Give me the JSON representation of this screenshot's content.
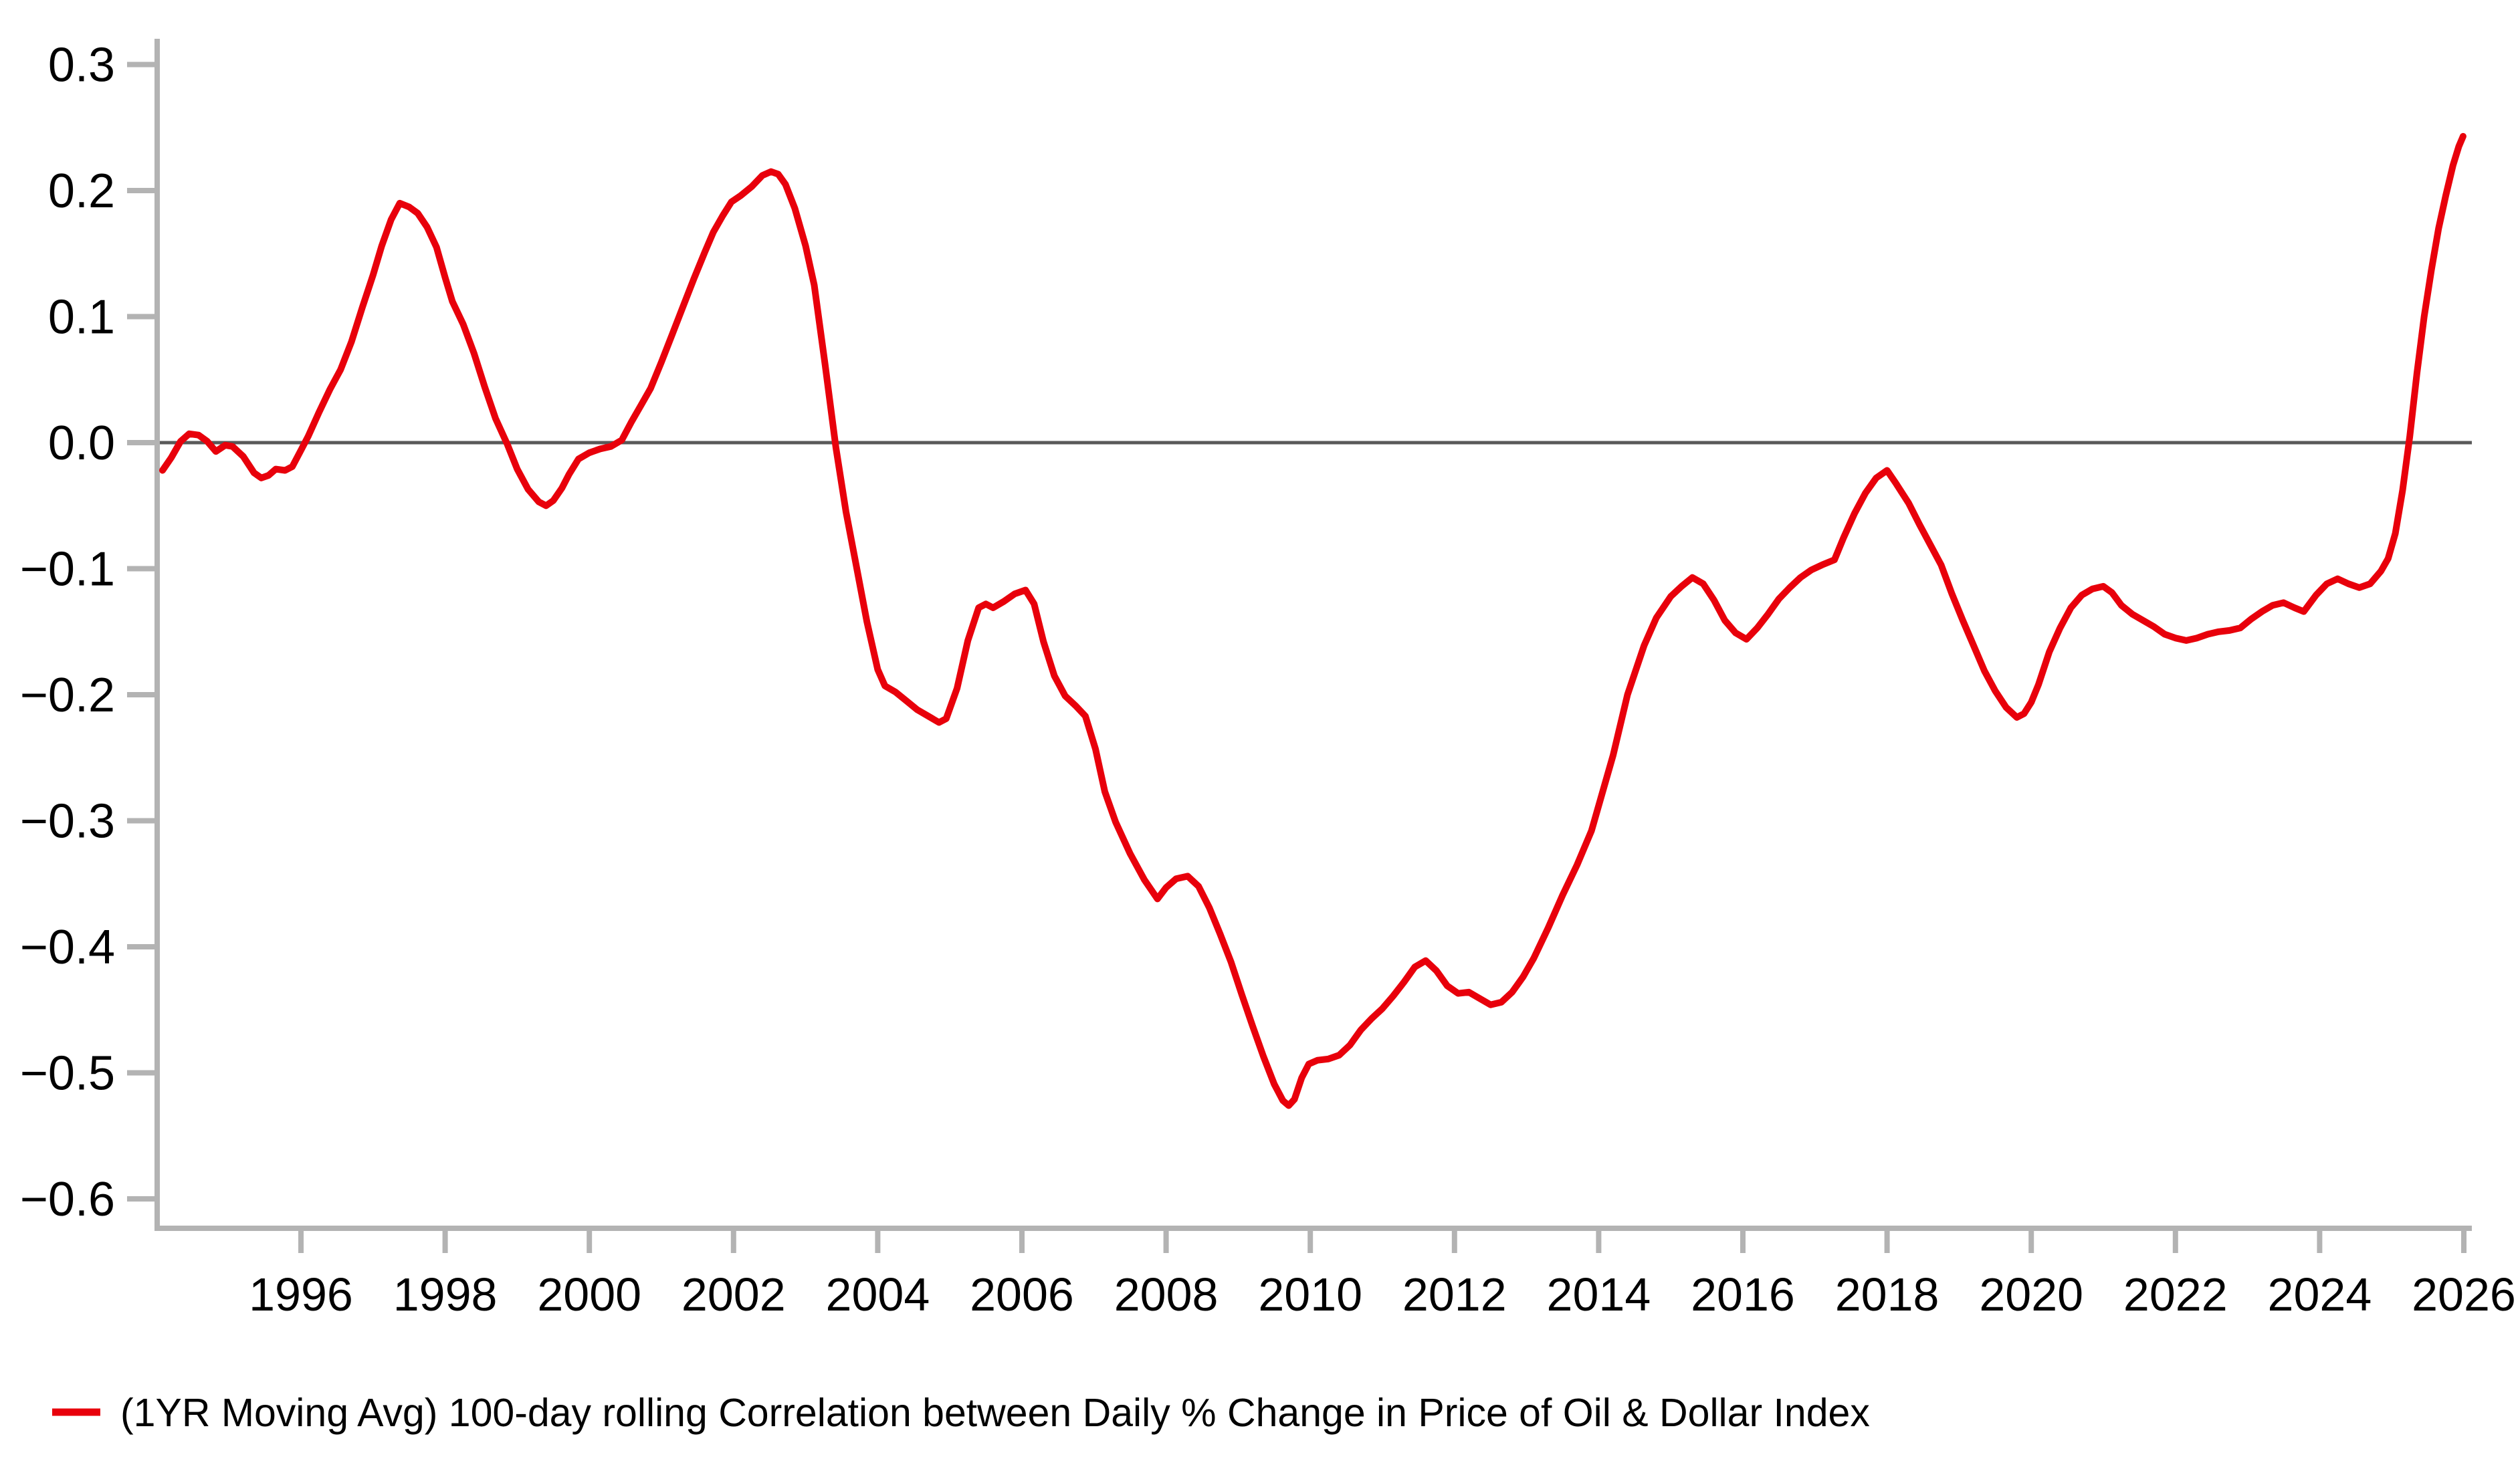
{
  "chart_data": {
    "type": "line",
    "title": "",
    "xlabel": "",
    "ylabel": "",
    "grid": false,
    "zero_line": true,
    "legend_position": "bottom-left",
    "colors": {
      "series": "#e8000b",
      "axis": "#b3b3b3",
      "zero_line": "#595959",
      "tick_text": "#000000"
    },
    "x_axis": {
      "min_year": 1994.0,
      "max_year": 2026.1,
      "ticks": [
        {
          "label": "1996",
          "year": 1996
        },
        {
          "label": "1998",
          "year": 1998
        },
        {
          "label": "2000",
          "year": 2000
        },
        {
          "label": "2002",
          "year": 2002
        },
        {
          "label": "2004",
          "year": 2004
        },
        {
          "label": "2006",
          "year": 2006
        },
        {
          "label": "2008",
          "year": 2008
        },
        {
          "label": "2010",
          "year": 2010
        },
        {
          "label": "2012",
          "year": 2012
        },
        {
          "label": "2014",
          "year": 2014
        },
        {
          "label": "2016",
          "year": 2016
        },
        {
          "label": "2018",
          "year": 2018
        },
        {
          "label": "2020",
          "year": 2020
        },
        {
          "label": "2022",
          "year": 2022
        },
        {
          "label": "2024",
          "year": 2024
        },
        {
          "label": "2026",
          "year": 2026
        }
      ]
    },
    "y_axis": {
      "min": -0.623,
      "max": 0.321,
      "ticks": [
        {
          "label": "0.3",
          "value": 0.3
        },
        {
          "label": "0.2",
          "value": 0.2
        },
        {
          "label": "0.1",
          "value": 0.1
        },
        {
          "label": "0.0",
          "value": 0.0
        },
        {
          "label": "−0.1",
          "value": -0.1
        },
        {
          "label": "−0.2",
          "value": -0.2
        },
        {
          "label": "−0.3",
          "value": -0.3
        },
        {
          "label": "−0.4",
          "value": -0.4
        },
        {
          "label": "−0.5",
          "value": -0.5
        },
        {
          "label": "−0.6",
          "value": -0.6
        }
      ]
    },
    "legend": {
      "swatch": "red-line",
      "label": "(1YR Moving Avg) 100-day rolling Correlation between Daily % Change in Price of Oil & Dollar Index"
    },
    "series": [
      {
        "name": "(1YR Moving Avg) 100-day rolling Correlation between Daily % Change in Price of Oil & Dollar Index",
        "color": "#e8000b",
        "points": [
          [
            1994.08,
            -0.022
          ],
          [
            1994.2,
            -0.012
          ],
          [
            1994.33,
            0.001
          ],
          [
            1994.45,
            0.007
          ],
          [
            1994.58,
            0.006
          ],
          [
            1994.7,
            0.001
          ],
          [
            1994.82,
            -0.007
          ],
          [
            1994.95,
            -0.002
          ],
          [
            1995.05,
            -0.003
          ],
          [
            1995.2,
            -0.011
          ],
          [
            1995.35,
            -0.024
          ],
          [
            1995.45,
            -0.028
          ],
          [
            1995.55,
            -0.026
          ],
          [
            1995.65,
            -0.021
          ],
          [
            1995.78,
            -0.022
          ],
          [
            1995.88,
            -0.019
          ],
          [
            1996.0,
            -0.006
          ],
          [
            1996.1,
            0.005
          ],
          [
            1996.25,
            0.024
          ],
          [
            1996.4,
            0.042
          ],
          [
            1996.55,
            0.058
          ],
          [
            1996.7,
            0.08
          ],
          [
            1996.85,
            0.107
          ],
          [
            1997.0,
            0.133
          ],
          [
            1997.12,
            0.156
          ],
          [
            1997.25,
            0.177
          ],
          [
            1997.37,
            0.19
          ],
          [
            1997.5,
            0.187
          ],
          [
            1997.62,
            0.182
          ],
          [
            1997.75,
            0.171
          ],
          [
            1997.88,
            0.155
          ],
          [
            1998.0,
            0.131
          ],
          [
            1998.1,
            0.112
          ],
          [
            1998.25,
            0.094
          ],
          [
            1998.4,
            0.071
          ],
          [
            1998.55,
            0.044
          ],
          [
            1998.7,
            0.019
          ],
          [
            1998.86,
            -0.001
          ],
          [
            1999.0,
            -0.021
          ],
          [
            1999.15,
            -0.037
          ],
          [
            1999.3,
            -0.047
          ],
          [
            1999.4,
            -0.05
          ],
          [
            1999.5,
            -0.046
          ],
          [
            1999.62,
            -0.036
          ],
          [
            1999.72,
            -0.025
          ],
          [
            1999.85,
            -0.013
          ],
          [
            2000.0,
            -0.008
          ],
          [
            2000.15,
            -0.005
          ],
          [
            2000.3,
            -0.003
          ],
          [
            2000.45,
            0.002
          ],
          [
            2000.58,
            0.016
          ],
          [
            2000.72,
            0.03
          ],
          [
            2000.85,
            0.043
          ],
          [
            2001.0,
            0.064
          ],
          [
            2001.15,
            0.086
          ],
          [
            2001.3,
            0.108
          ],
          [
            2001.45,
            0.13
          ],
          [
            2001.6,
            0.151
          ],
          [
            2001.72,
            0.167
          ],
          [
            2001.85,
            0.18
          ],
          [
            2001.97,
            0.191
          ],
          [
            2002.1,
            0.196
          ],
          [
            2002.25,
            0.203
          ],
          [
            2002.4,
            0.212
          ],
          [
            2002.52,
            0.215
          ],
          [
            2002.62,
            0.213
          ],
          [
            2002.72,
            0.205
          ],
          [
            2002.85,
            0.186
          ],
          [
            2003.0,
            0.156
          ],
          [
            2003.12,
            0.125
          ],
          [
            2003.27,
            0.062
          ],
          [
            2003.42,
            -0.004
          ],
          [
            2003.56,
            -0.055
          ],
          [
            2003.7,
            -0.097
          ],
          [
            2003.85,
            -0.142
          ],
          [
            2004.0,
            -0.18
          ],
          [
            2004.1,
            -0.193
          ],
          [
            2004.25,
            -0.198
          ],
          [
            2004.4,
            -0.205
          ],
          [
            2004.55,
            -0.212
          ],
          [
            2004.7,
            -0.217
          ],
          [
            2004.85,
            -0.222
          ],
          [
            2004.95,
            -0.219
          ],
          [
            2005.1,
            -0.195
          ],
          [
            2005.25,
            -0.157
          ],
          [
            2005.4,
            -0.131
          ],
          [
            2005.5,
            -0.128
          ],
          [
            2005.6,
            -0.131
          ],
          [
            2005.75,
            -0.126
          ],
          [
            2005.9,
            -0.12
          ],
          [
            2006.05,
            -0.117
          ],
          [
            2006.17,
            -0.128
          ],
          [
            2006.3,
            -0.158
          ],
          [
            2006.45,
            -0.185
          ],
          [
            2006.6,
            -0.201
          ],
          [
            2006.75,
            -0.209
          ],
          [
            2006.88,
            -0.217
          ],
          [
            2007.02,
            -0.243
          ],
          [
            2007.15,
            -0.277
          ],
          [
            2007.3,
            -0.301
          ],
          [
            2007.5,
            -0.326
          ],
          [
            2007.7,
            -0.347
          ],
          [
            2007.88,
            -0.362
          ],
          [
            2008.0,
            -0.353
          ],
          [
            2008.14,
            -0.346
          ],
          [
            2008.3,
            -0.344
          ],
          [
            2008.45,
            -0.352
          ],
          [
            2008.6,
            -0.369
          ],
          [
            2008.75,
            -0.39
          ],
          [
            2008.9,
            -0.412
          ],
          [
            2009.05,
            -0.438
          ],
          [
            2009.2,
            -0.463
          ],
          [
            2009.35,
            -0.487
          ],
          [
            2009.5,
            -0.509
          ],
          [
            2009.62,
            -0.522
          ],
          [
            2009.7,
            -0.526
          ],
          [
            2009.78,
            -0.521
          ],
          [
            2009.88,
            -0.504
          ],
          [
            2009.98,
            -0.493
          ],
          [
            2010.1,
            -0.49
          ],
          [
            2010.25,
            -0.489
          ],
          [
            2010.4,
            -0.486
          ],
          [
            2010.55,
            -0.478
          ],
          [
            2010.7,
            -0.466
          ],
          [
            2010.85,
            -0.457
          ],
          [
            2011.0,
            -0.449
          ],
          [
            2011.15,
            -0.439
          ],
          [
            2011.3,
            -0.428
          ],
          [
            2011.45,
            -0.416
          ],
          [
            2011.6,
            -0.411
          ],
          [
            2011.75,
            -0.419
          ],
          [
            2011.9,
            -0.431
          ],
          [
            2012.05,
            -0.437
          ],
          [
            2012.2,
            -0.436
          ],
          [
            2012.35,
            -0.441
          ],
          [
            2012.5,
            -0.446
          ],
          [
            2012.65,
            -0.444
          ],
          [
            2012.8,
            -0.436
          ],
          [
            2012.95,
            -0.424
          ],
          [
            2013.1,
            -0.409
          ],
          [
            2013.3,
            -0.385
          ],
          [
            2013.5,
            -0.359
          ],
          [
            2013.7,
            -0.335
          ],
          [
            2013.9,
            -0.308
          ],
          [
            2014.05,
            -0.278
          ],
          [
            2014.2,
            -0.248
          ],
          [
            2014.4,
            -0.2
          ],
          [
            2014.63,
            -0.161
          ],
          [
            2014.8,
            -0.139
          ],
          [
            2015.0,
            -0.122
          ],
          [
            2015.15,
            -0.114
          ],
          [
            2015.3,
            -0.107
          ],
          [
            2015.45,
            -0.112
          ],
          [
            2015.6,
            -0.125
          ],
          [
            2015.75,
            -0.141
          ],
          [
            2015.9,
            -0.151
          ],
          [
            2016.05,
            -0.156
          ],
          [
            2016.2,
            -0.147
          ],
          [
            2016.35,
            -0.136
          ],
          [
            2016.5,
            -0.124
          ],
          [
            2016.65,
            -0.115
          ],
          [
            2016.8,
            -0.107
          ],
          [
            2016.95,
            -0.101
          ],
          [
            2017.1,
            -0.097
          ],
          [
            2017.27,
            -0.093
          ],
          [
            2017.4,
            -0.075
          ],
          [
            2017.55,
            -0.056
          ],
          [
            2017.7,
            -0.04
          ],
          [
            2017.85,
            -0.028
          ],
          [
            2018.0,
            -0.022
          ],
          [
            2018.12,
            -0.032
          ],
          [
            2018.3,
            -0.048
          ],
          [
            2018.45,
            -0.065
          ],
          [
            2018.6,
            -0.081
          ],
          [
            2018.75,
            -0.097
          ],
          [
            2018.9,
            -0.12
          ],
          [
            2019.05,
            -0.141
          ],
          [
            2019.2,
            -0.161
          ],
          [
            2019.35,
            -0.181
          ],
          [
            2019.5,
            -0.197
          ],
          [
            2019.65,
            -0.21
          ],
          [
            2019.8,
            -0.218
          ],
          [
            2019.9,
            -0.215
          ],
          [
            2020.0,
            -0.206
          ],
          [
            2020.1,
            -0.192
          ],
          [
            2020.25,
            -0.166
          ],
          [
            2020.4,
            -0.147
          ],
          [
            2020.55,
            -0.131
          ],
          [
            2020.7,
            -0.121
          ],
          [
            2020.85,
            -0.116
          ],
          [
            2021.0,
            -0.114
          ],
          [
            2021.12,
            -0.119
          ],
          [
            2021.25,
            -0.129
          ],
          [
            2021.4,
            -0.136
          ],
          [
            2021.55,
            -0.141
          ],
          [
            2021.7,
            -0.146
          ],
          [
            2021.85,
            -0.152
          ],
          [
            2022.0,
            -0.155
          ],
          [
            2022.15,
            -0.157
          ],
          [
            2022.3,
            -0.155
          ],
          [
            2022.45,
            -0.152
          ],
          [
            2022.6,
            -0.15
          ],
          [
            2022.75,
            -0.149
          ],
          [
            2022.9,
            -0.147
          ],
          [
            2023.05,
            -0.14
          ],
          [
            2023.2,
            -0.134
          ],
          [
            2023.35,
            -0.129
          ],
          [
            2023.5,
            -0.127
          ],
          [
            2023.65,
            -0.131
          ],
          [
            2023.78,
            -0.134
          ],
          [
            2023.95,
            -0.121
          ],
          [
            2024.1,
            -0.112
          ],
          [
            2024.25,
            -0.108
          ],
          [
            2024.4,
            -0.112
          ],
          [
            2024.55,
            -0.115
          ],
          [
            2024.7,
            -0.112
          ],
          [
            2024.85,
            -0.102
          ],
          [
            2024.95,
            -0.092
          ],
          [
            2025.05,
            -0.072
          ],
          [
            2025.15,
            -0.038
          ],
          [
            2025.25,
            0.005
          ],
          [
            2025.35,
            0.055
          ],
          [
            2025.45,
            0.1
          ],
          [
            2025.55,
            0.137
          ],
          [
            2025.65,
            0.17
          ],
          [
            2025.75,
            0.196
          ],
          [
            2025.85,
            0.22
          ],
          [
            2025.93,
            0.235
          ],
          [
            2025.99,
            0.243
          ]
        ]
      }
    ]
  }
}
